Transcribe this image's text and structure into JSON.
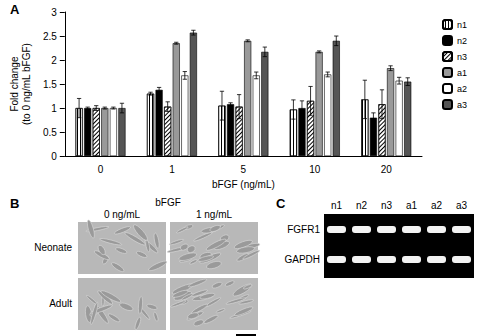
{
  "chart_data": {
    "type": "bar",
    "xlabel": "bFGF (ng/mL)",
    "ylabel": "Fold change\n(to 0 ng/mL bFGF)",
    "categories": [
      "0",
      "1",
      "5",
      "10",
      "20"
    ],
    "series": [
      {
        "name": "n1",
        "color": "#ffffff",
        "marker": "vertical stripes",
        "values": [
          1.0,
          1.3,
          1.05,
          0.97,
          1.18
        ],
        "errors": [
          0.2,
          0.03,
          0.3,
          0.2,
          0.4
        ]
      },
      {
        "name": "n2",
        "color": "#000000",
        "values": [
          1.0,
          1.38,
          1.08,
          1.0,
          0.8
        ],
        "errors": [
          0.02,
          0.05,
          0.03,
          0.15,
          0.1
        ]
      },
      {
        "name": "n3",
        "color": "#ffffff",
        "marker": "diagonal hatch",
        "values": [
          1.0,
          1.03,
          1.03,
          1.15,
          1.08
        ],
        "errors": [
          0.05,
          0.1,
          0.25,
          0.3,
          0.3
        ]
      },
      {
        "name": "a1",
        "color": "#999999",
        "values": [
          1.0,
          2.35,
          2.4,
          2.17,
          1.83
        ],
        "errors": [
          0.02,
          0.02,
          0.02,
          0.02,
          0.05
        ]
      },
      {
        "name": "a2",
        "color": "#ffffff",
        "values": [
          1.0,
          1.68,
          1.68,
          1.7,
          1.57
        ],
        "errors": [
          0.02,
          0.08,
          0.07,
          0.05,
          0.07
        ]
      },
      {
        "name": "a3",
        "color": "#555555",
        "values": [
          1.0,
          2.57,
          2.17,
          2.4,
          1.55
        ],
        "errors": [
          0.1,
          0.05,
          0.1,
          0.1,
          0.08
        ]
      }
    ],
    "ylim": [
      0,
      3
    ],
    "yticks": [
      0,
      0.5,
      1,
      1.5,
      2,
      2.5,
      3
    ],
    "grid": false,
    "legend": "right"
  },
  "panel_labels": [
    "A",
    "B",
    "C"
  ],
  "panel_b": {
    "header": "bFGF",
    "columns": [
      "0 ng/mL",
      "1 ng/mL"
    ],
    "rows": [
      "Neonate",
      "Adult"
    ]
  },
  "panel_c": {
    "lanes": [
      "n1",
      "n2",
      "n3",
      "a1",
      "a2",
      "a3"
    ],
    "bands": [
      "FGFR1",
      "GAPDH"
    ]
  }
}
